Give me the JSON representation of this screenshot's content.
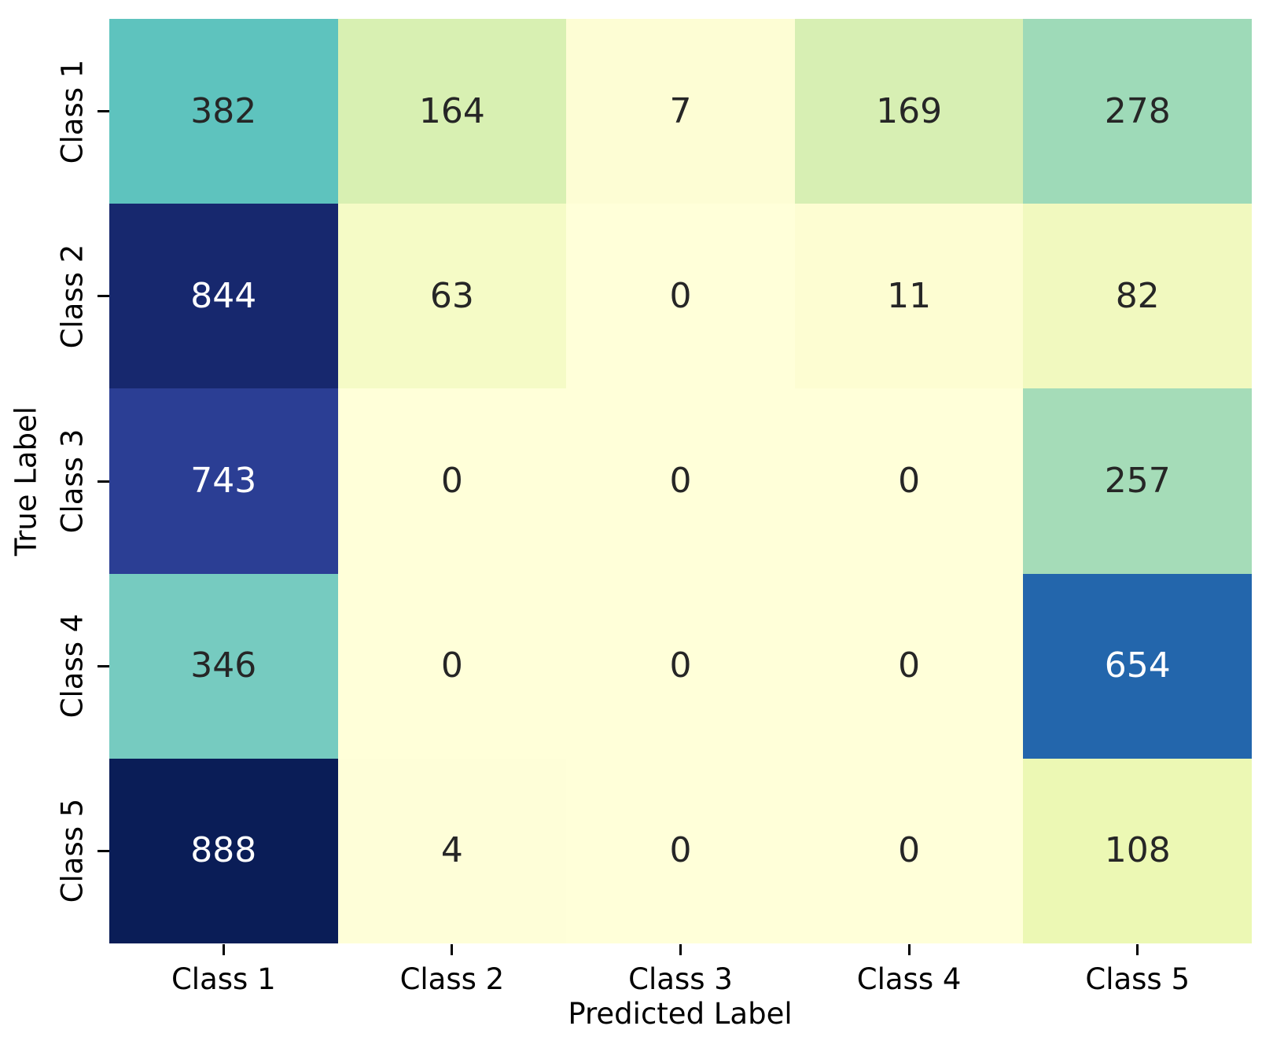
{
  "figure": {
    "background": "#ffffff",
    "xlabel": "Predicted Label",
    "ylabel": "True Label"
  },
  "chart_data": {
    "type": "heatmap",
    "title": "",
    "xlabel": "Predicted Label",
    "ylabel": "True Label",
    "x_ticklabels": [
      "Class 1",
      "Class 2",
      "Class 3",
      "Class 4",
      "Class 5"
    ],
    "y_ticklabels": [
      "Class 1",
      "Class 2",
      "Class 3",
      "Class 4",
      "Class 5"
    ],
    "values": [
      [
        382,
        164,
        7,
        169,
        278
      ],
      [
        844,
        63,
        0,
        11,
        82
      ],
      [
        743,
        0,
        0,
        0,
        257
      ],
      [
        346,
        0,
        0,
        0,
        654
      ],
      [
        888,
        4,
        0,
        0,
        108
      ]
    ],
    "vmin": 0,
    "vmax": 888,
    "colormap": "YlGnBu",
    "grid": false,
    "legend_position": "none",
    "cell_colors": [
      [
        "#5ec3be",
        "#d8f0b2",
        "#fdfdd4",
        "#d7efb3",
        "#9edab8"
      ],
      [
        "#17286e",
        "#f5fbc6",
        "#ffffd9",
        "#fdfdd2",
        "#f1f9bf"
      ],
      [
        "#2b3e94",
        "#ffffd9",
        "#ffffd9",
        "#ffffd9",
        "#a5dcb8"
      ],
      [
        "#76cbc0",
        "#ffffd9",
        "#ffffd9",
        "#ffffd9",
        "#2366ac"
      ],
      [
        "#0a1d57",
        "#fefed8",
        "#ffffd9",
        "#ffffd9",
        "#ecf8b4"
      ]
    ],
    "annotation_colors": [
      [
        "#262626",
        "#262626",
        "#262626",
        "#262626",
        "#262626"
      ],
      [
        "#ffffff",
        "#262626",
        "#262626",
        "#262626",
        "#262626"
      ],
      [
        "#ffffff",
        "#262626",
        "#262626",
        "#262626",
        "#262626"
      ],
      [
        "#262626",
        "#262626",
        "#262626",
        "#262626",
        "#ffffff"
      ],
      [
        "#ffffff",
        "#262626",
        "#262626",
        "#262626",
        "#262626"
      ]
    ],
    "tick_color": "#000000",
    "label_color": "#000000"
  },
  "layout_note": ""
}
